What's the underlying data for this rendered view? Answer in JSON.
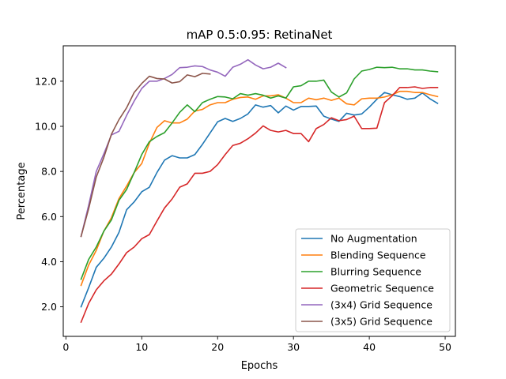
{
  "chart_data": {
    "type": "line",
    "title": "mAP 0.5:0.95: RetinaNet",
    "xlabel": "Epochs",
    "ylabel": "Percentage",
    "xlim": [
      -0.35,
      51.35
    ],
    "ylim": [
      0.69,
      13.57
    ],
    "xticks": [
      0,
      10,
      20,
      30,
      40,
      50
    ],
    "yticks": [
      2.0,
      4.0,
      6.0,
      8.0,
      10.0,
      12.0
    ],
    "ytick_labels": [
      "2.0",
      "4.0",
      "6.0",
      "8.0",
      "10.0",
      "12.0"
    ],
    "grid": false,
    "legend_position": "lower-right",
    "series": [
      {
        "name": "No Augmentation",
        "color": "#1f77b4",
        "x": [
          2,
          3,
          4,
          5,
          6,
          7,
          8,
          9,
          10,
          11,
          12,
          13,
          14,
          15,
          16,
          17,
          18,
          19,
          20,
          21,
          22,
          23,
          24,
          25,
          26,
          27,
          28,
          29,
          30,
          31,
          32,
          33,
          34,
          35,
          36,
          37,
          38,
          39,
          40,
          41,
          42,
          43,
          44,
          45,
          46,
          47,
          48,
          49
        ],
        "y": [
          2.0,
          2.85,
          3.75,
          4.15,
          4.65,
          5.3,
          6.3,
          6.65,
          7.1,
          7.3,
          7.95,
          8.5,
          8.7,
          8.6,
          8.6,
          8.75,
          9.2,
          9.7,
          10.2,
          10.35,
          10.22,
          10.35,
          10.55,
          10.95,
          10.85,
          10.92,
          10.6,
          10.9,
          10.72,
          10.88,
          10.88,
          10.9,
          10.45,
          10.32,
          10.22,
          10.58,
          10.5,
          10.55,
          10.85,
          11.2,
          11.5,
          11.4,
          11.32,
          11.2,
          11.25,
          11.48,
          11.22,
          11.02
        ]
      },
      {
        "name": "Blending Sequence",
        "color": "#ff7f0e",
        "x": [
          2,
          3,
          4,
          5,
          6,
          7,
          8,
          9,
          10,
          11,
          12,
          13,
          14,
          15,
          16,
          17,
          18,
          19,
          20,
          21,
          22,
          23,
          24,
          25,
          26,
          27,
          28,
          29,
          30,
          31,
          32,
          33,
          34,
          35,
          36,
          37,
          38,
          39,
          40,
          41,
          42,
          43,
          44,
          45,
          46,
          47,
          48,
          49
        ],
        "y": [
          2.95,
          3.85,
          4.5,
          5.35,
          5.95,
          6.8,
          7.35,
          7.95,
          8.35,
          9.25,
          9.95,
          10.25,
          10.15,
          10.15,
          10.32,
          10.68,
          10.75,
          10.95,
          11.05,
          11.05,
          11.2,
          11.28,
          11.3,
          11.2,
          11.35,
          11.35,
          11.4,
          11.25,
          11.05,
          11.05,
          11.25,
          11.18,
          11.25,
          11.15,
          11.25,
          11.0,
          10.95,
          11.22,
          11.25,
          11.25,
          11.3,
          11.4,
          11.55,
          11.55,
          11.5,
          11.5,
          11.4,
          11.32
        ]
      },
      {
        "name": "Blurring Sequence",
        "color": "#2ca02c",
        "x": [
          2,
          3,
          4,
          5,
          6,
          7,
          8,
          9,
          10,
          11,
          12,
          13,
          14,
          15,
          16,
          17,
          18,
          19,
          20,
          21,
          22,
          23,
          24,
          25,
          26,
          27,
          28,
          29,
          30,
          31,
          32,
          33,
          34,
          35,
          36,
          37,
          38,
          39,
          40,
          41,
          42,
          43,
          44,
          45,
          46,
          47,
          48,
          49
        ],
        "y": [
          3.22,
          4.1,
          4.65,
          5.35,
          5.85,
          6.72,
          7.2,
          7.95,
          8.75,
          9.32,
          9.55,
          9.72,
          10.15,
          10.62,
          10.95,
          10.65,
          11.05,
          11.2,
          11.32,
          11.3,
          11.22,
          11.45,
          11.38,
          11.45,
          11.38,
          11.25,
          11.35,
          11.25,
          11.75,
          11.8,
          12.0,
          12.0,
          12.05,
          11.52,
          11.3,
          11.48,
          12.1,
          12.45,
          12.52,
          12.62,
          12.6,
          12.62,
          12.55,
          12.55,
          12.5,
          12.5,
          12.45,
          12.42
        ]
      },
      {
        "name": "Geometric Sequence",
        "color": "#d62728",
        "x": [
          2,
          3,
          4,
          5,
          6,
          7,
          8,
          9,
          10,
          11,
          12,
          13,
          14,
          15,
          16,
          17,
          18,
          19,
          20,
          21,
          22,
          23,
          24,
          25,
          26,
          27,
          28,
          29,
          30,
          31,
          32,
          33,
          34,
          35,
          36,
          37,
          38,
          39,
          40,
          41,
          42,
          43,
          44,
          45,
          46,
          47,
          48,
          49
        ],
        "y": [
          1.32,
          2.15,
          2.75,
          3.15,
          3.45,
          3.9,
          4.4,
          4.65,
          5.02,
          5.2,
          5.8,
          6.38,
          6.78,
          7.3,
          7.45,
          7.92,
          7.92,
          8.0,
          8.3,
          8.75,
          9.15,
          9.25,
          9.45,
          9.7,
          10.02,
          9.82,
          9.75,
          9.82,
          9.68,
          9.68,
          9.32,
          9.9,
          10.08,
          10.38,
          10.25,
          10.3,
          10.45,
          9.9,
          9.9,
          9.92,
          11.05,
          11.35,
          11.72,
          11.72,
          11.75,
          11.68,
          11.72,
          11.72
        ]
      },
      {
        "name": "(3x4) Grid Sequence",
        "color": "#9467bd",
        "x": [
          2,
          3,
          4,
          5,
          6,
          7,
          8,
          9,
          10,
          11,
          12,
          13,
          14,
          15,
          16,
          17,
          18,
          19,
          20,
          21,
          22,
          23,
          24,
          25,
          26,
          27,
          28,
          29
        ],
        "y": [
          5.12,
          6.5,
          8.0,
          8.78,
          9.62,
          9.78,
          10.48,
          11.12,
          11.68,
          12.0,
          12.0,
          12.12,
          12.3,
          12.6,
          12.62,
          12.68,
          12.65,
          12.5,
          12.4,
          12.22,
          12.62,
          12.75,
          12.95,
          12.72,
          12.55,
          12.62,
          12.8,
          12.6
        ]
      },
      {
        "name": "(3x5) Grid Sequence",
        "color": "#8c564b",
        "x": [
          2,
          3,
          4,
          5,
          6,
          7,
          8,
          9,
          10,
          11,
          12,
          13,
          14,
          15,
          16,
          17,
          18,
          19
        ],
        "y": [
          5.12,
          6.35,
          7.75,
          8.62,
          9.65,
          10.3,
          10.82,
          11.5,
          11.9,
          12.22,
          12.12,
          12.1,
          11.92,
          11.98,
          12.28,
          12.2,
          12.35,
          12.32
        ]
      }
    ]
  }
}
